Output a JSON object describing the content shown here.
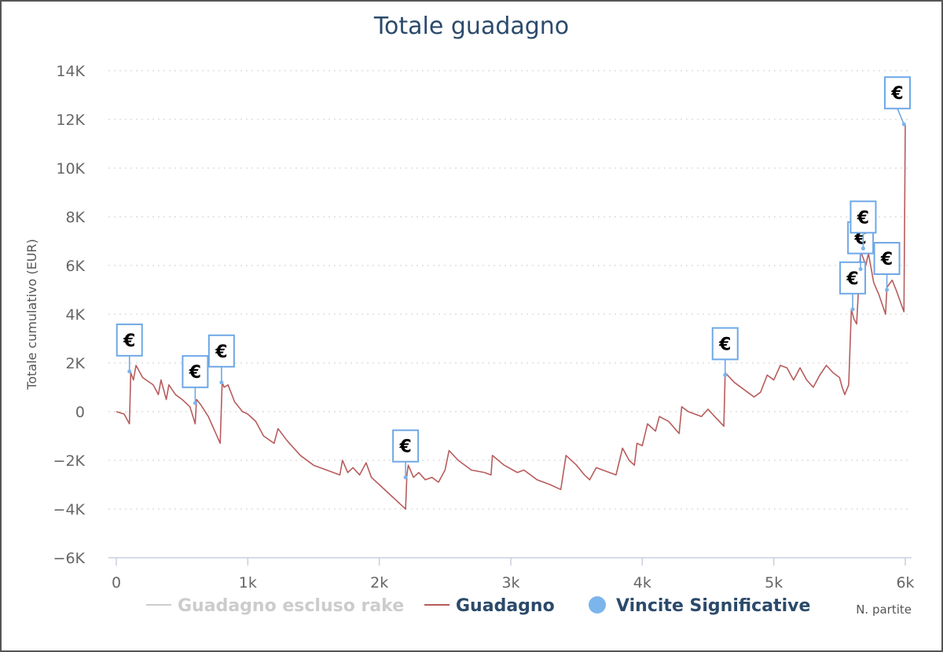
{
  "chart_data": {
    "type": "line",
    "title": "Totale guadagno",
    "xlabel": "N. partite",
    "ylabel": "Totale cumulativo (EUR)",
    "xlim": [
      0,
      6000
    ],
    "ylim": [
      -6000,
      14000
    ],
    "x_ticks": [
      0,
      1000,
      2000,
      3000,
      4000,
      5000,
      6000
    ],
    "x_tick_labels": [
      "0",
      "1k",
      "2k",
      "3k",
      "4k",
      "5k",
      "6k"
    ],
    "y_ticks": [
      14000,
      12000,
      10000,
      8000,
      6000,
      4000,
      2000,
      0,
      -2000,
      -4000,
      -6000
    ],
    "y_tick_labels": [
      "14K",
      "12K",
      "10K",
      "8K",
      "6K",
      "4K",
      "2K",
      "0",
      "−2K",
      "−4K",
      "−6K"
    ],
    "grid": true,
    "legend_position": "bottom",
    "legend": [
      {
        "label": "Guadagno escluso rake",
        "marker": "line",
        "color": "#cccccc",
        "hidden": true
      },
      {
        "label": "Guadagno",
        "marker": "line",
        "color": "#b85c5c"
      },
      {
        "label": "Vincite Significative",
        "marker": "dot",
        "color": "#7cb5ec"
      }
    ],
    "series": [
      {
        "name": "Guadagno",
        "color": "#b85c5c",
        "points": [
          [
            0,
            0
          ],
          [
            60,
            -100
          ],
          [
            100,
            -500
          ],
          [
            110,
            1600
          ],
          [
            130,
            1300
          ],
          [
            150,
            1900
          ],
          [
            200,
            1400
          ],
          [
            280,
            1100
          ],
          [
            320,
            700
          ],
          [
            340,
            1300
          ],
          [
            380,
            500
          ],
          [
            400,
            1100
          ],
          [
            450,
            700
          ],
          [
            500,
            500
          ],
          [
            560,
            200
          ],
          [
            600,
            -500
          ],
          [
            610,
            500
          ],
          [
            640,
            300
          ],
          [
            700,
            -200
          ],
          [
            790,
            -1300
          ],
          [
            805,
            1200
          ],
          [
            820,
            1000
          ],
          [
            850,
            1100
          ],
          [
            900,
            400
          ],
          [
            960,
            0
          ],
          [
            1000,
            -100
          ],
          [
            1060,
            -400
          ],
          [
            1120,
            -1000
          ],
          [
            1200,
            -1300
          ],
          [
            1230,
            -700
          ],
          [
            1300,
            -1200
          ],
          [
            1400,
            -1800
          ],
          [
            1500,
            -2200
          ],
          [
            1600,
            -2400
          ],
          [
            1700,
            -2600
          ],
          [
            1720,
            -2000
          ],
          [
            1760,
            -2500
          ],
          [
            1800,
            -2300
          ],
          [
            1850,
            -2600
          ],
          [
            1900,
            -2100
          ],
          [
            1940,
            -2700
          ],
          [
            2000,
            -3000
          ],
          [
            2100,
            -3500
          ],
          [
            2180,
            -3900
          ],
          [
            2200,
            -4000
          ],
          [
            2210,
            -2600
          ],
          [
            2220,
            -2200
          ],
          [
            2260,
            -2700
          ],
          [
            2300,
            -2500
          ],
          [
            2350,
            -2800
          ],
          [
            2400,
            -2700
          ],
          [
            2450,
            -2900
          ],
          [
            2500,
            -2400
          ],
          [
            2530,
            -1600
          ],
          [
            2600,
            -2000
          ],
          [
            2700,
            -2400
          ],
          [
            2800,
            -2500
          ],
          [
            2850,
            -2600
          ],
          [
            2860,
            -1800
          ],
          [
            2950,
            -2200
          ],
          [
            3050,
            -2500
          ],
          [
            3100,
            -2400
          ],
          [
            3200,
            -2800
          ],
          [
            3300,
            -3000
          ],
          [
            3380,
            -3200
          ],
          [
            3420,
            -1800
          ],
          [
            3500,
            -2200
          ],
          [
            3560,
            -2600
          ],
          [
            3600,
            -2800
          ],
          [
            3650,
            -2300
          ],
          [
            3700,
            -2400
          ],
          [
            3800,
            -2600
          ],
          [
            3850,
            -1500
          ],
          [
            3900,
            -2000
          ],
          [
            3940,
            -2200
          ],
          [
            3960,
            -1300
          ],
          [
            4000,
            -1400
          ],
          [
            4040,
            -500
          ],
          [
            4100,
            -800
          ],
          [
            4130,
            -200
          ],
          [
            4200,
            -400
          ],
          [
            4280,
            -900
          ],
          [
            4300,
            200
          ],
          [
            4350,
            0
          ],
          [
            4450,
            -200
          ],
          [
            4500,
            100
          ],
          [
            4550,
            -200
          ],
          [
            4620,
            -600
          ],
          [
            4630,
            1600
          ],
          [
            4700,
            1200
          ],
          [
            4800,
            800
          ],
          [
            4850,
            600
          ],
          [
            4900,
            800
          ],
          [
            4950,
            1500
          ],
          [
            5000,
            1300
          ],
          [
            5050,
            1900
          ],
          [
            5100,
            1800
          ],
          [
            5150,
            1300
          ],
          [
            5200,
            1800
          ],
          [
            5250,
            1300
          ],
          [
            5300,
            1000
          ],
          [
            5350,
            1500
          ],
          [
            5400,
            1900
          ],
          [
            5450,
            1600
          ],
          [
            5500,
            1400
          ],
          [
            5520,
            1000
          ],
          [
            5540,
            700
          ],
          [
            5570,
            1100
          ],
          [
            5590,
            4200
          ],
          [
            5610,
            3800
          ],
          [
            5630,
            3600
          ],
          [
            5660,
            6600
          ],
          [
            5700,
            6000
          ],
          [
            5720,
            6500
          ],
          [
            5760,
            5300
          ],
          [
            5800,
            4800
          ],
          [
            5850,
            4000
          ],
          [
            5860,
            5100
          ],
          [
            5900,
            5400
          ],
          [
            5930,
            5000
          ],
          [
            5970,
            4400
          ],
          [
            5990,
            4100
          ],
          [
            6000,
            11800
          ]
        ]
      }
    ],
    "markers": {
      "name": "Vincite Significative",
      "color": "#7cb5ec",
      "label": "€",
      "points": [
        {
          "x": 100,
          "y": 1650,
          "label": "€"
        },
        {
          "x": 600,
          "y": 350,
          "label": "€"
        },
        {
          "x": 800,
          "y": 1200,
          "label": "€"
        },
        {
          "x": 2200,
          "y": -2700,
          "label": "€"
        },
        {
          "x": 4630,
          "y": 1500,
          "label": "€"
        },
        {
          "x": 5600,
          "y": 4200,
          "label": "€"
        },
        {
          "x": 5660,
          "y": 5850,
          "label": "€"
        },
        {
          "x": 5680,
          "y": 6700,
          "label": "€"
        },
        {
          "x": 5860,
          "y": 5000,
          "label": "€"
        },
        {
          "x": 5990,
          "y": 11800,
          "label": "€"
        }
      ]
    }
  }
}
